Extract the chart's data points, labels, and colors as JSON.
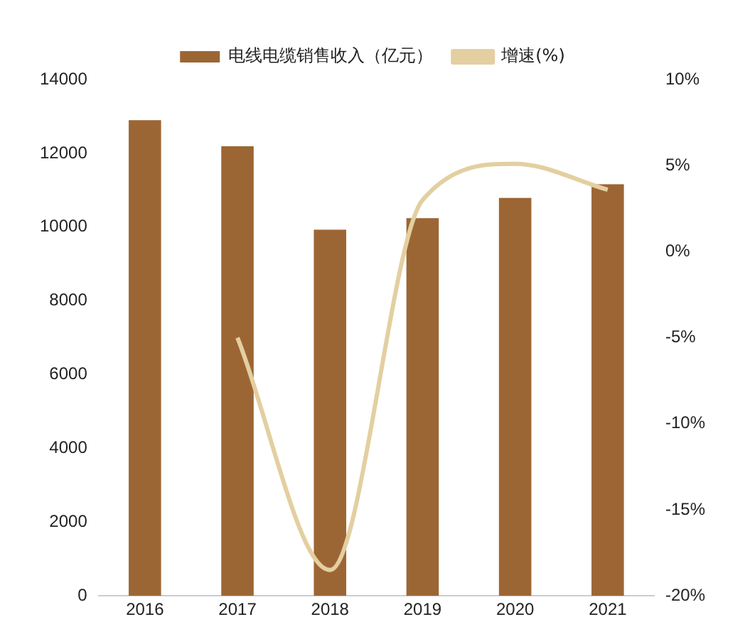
{
  "chart_data": {
    "type": "bar",
    "categories": [
      "2016",
      "2017",
      "2018",
      "2019",
      "2020",
      "2021"
    ],
    "series": [
      {
        "name": "电线电缆销售收入（亿元）",
        "color": "#9c6634",
        "values": [
          12900,
          12190,
          9930,
          10240,
          10790,
          11160
        ]
      },
      {
        "name": "增速(%)",
        "type": "line",
        "axis": "y2",
        "color": "#e3cfa0",
        "marker": "none",
        "values": [
          null,
          -5,
          -18.5,
          3,
          5.1,
          3.6
        ]
      }
    ],
    "ylim": [
      0,
      14000
    ],
    "yticks": [
      0,
      2000,
      4000,
      6000,
      8000,
      10000,
      12000,
      14000
    ],
    "y2lim": [
      -20,
      10
    ],
    "y2ticks": [
      {
        "value": -20,
        "label": "-20%"
      },
      {
        "value": -15,
        "label": "-15%"
      },
      {
        "value": -10,
        "label": "-10%"
      },
      {
        "value": -5,
        "label": "-5%"
      },
      {
        "value": 0,
        "label": "0%"
      },
      {
        "value": 5,
        "label": "5%"
      },
      {
        "value": 10,
        "label": "10%"
      }
    ],
    "grid": false,
    "legend": "top"
  }
}
